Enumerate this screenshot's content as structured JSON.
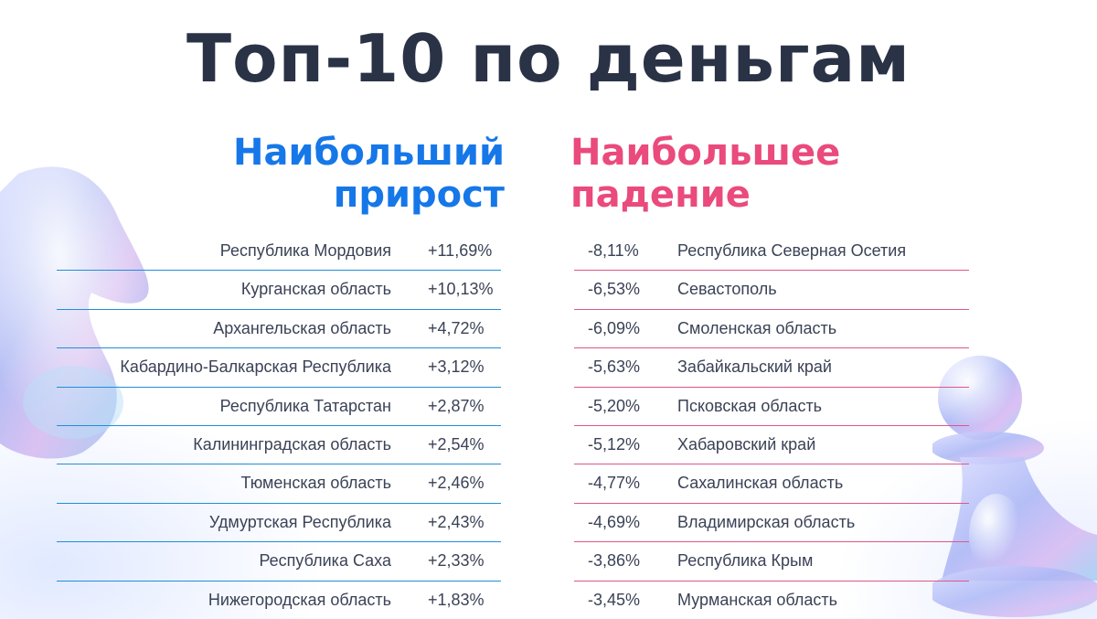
{
  "title": "Топ-10 по деньгам",
  "growth": {
    "heading_line1": "Наибольший",
    "heading_line2": "прирост",
    "color": "#1677e8",
    "rows": [
      {
        "name": "Республика Мордовия",
        "value": "+11,69%"
      },
      {
        "name": "Курганская область",
        "value": "+10,13%"
      },
      {
        "name": "Архангельская область",
        "value": "+4,72%"
      },
      {
        "name": "Кабардино-Балкарская Республика",
        "value": "+3,12%"
      },
      {
        "name": "Республика Татарстан",
        "value": "+2,87%"
      },
      {
        "name": "Калининградская область",
        "value": "+2,54%"
      },
      {
        "name": "Тюменская область",
        "value": "+2,46%"
      },
      {
        "name": "Удмуртская Республика",
        "value": "+2,43%"
      },
      {
        "name": "Республика Саха",
        "value": "+2,33%"
      },
      {
        "name": "Нижегородская область",
        "value": "+1,83%"
      }
    ]
  },
  "decline": {
    "heading_line1": "Наибольшее",
    "heading_line2": "падение",
    "color": "#ea4a7c",
    "rows": [
      {
        "value": "-8,11%",
        "name": "Республика Северная Осетия"
      },
      {
        "value": "-6,53%",
        "name": "Севастополь"
      },
      {
        "value": "-6,09%",
        "name": "Смоленская область"
      },
      {
        "value": "-5,63%",
        "name": "Забайкальский край"
      },
      {
        "value": "-5,20%",
        "name": "Псковская область"
      },
      {
        "value": "-5,12%",
        "name": "Хабаровский край"
      },
      {
        "value": "-4,77%",
        "name": "Сахалинская область"
      },
      {
        "value": "-4,69%",
        "name": "Владимирская область"
      },
      {
        "value": "-3,86%",
        "name": "Республика Крым"
      },
      {
        "value": "-3,45%",
        "name": "Мурманская область"
      }
    ]
  },
  "decorations": {
    "left_icon": "glass-chess-knight-icon",
    "right_icon": "glass-chess-pawn-icon"
  }
}
